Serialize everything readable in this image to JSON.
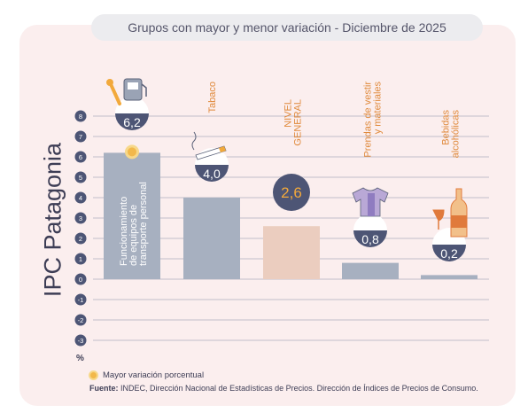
{
  "title": "Grupos con mayor y menor variación - Diciembre de 2025",
  "side_title": "IPC Patagonia",
  "legend": {
    "highlight_label": "Mayor variación porcentual"
  },
  "source": {
    "label": "Fuente:",
    "text": "INDEC, Dirección Nacional de Estadísticas de Precios. Dirección de Índices de Precios de Consumo."
  },
  "colors": {
    "card": "#fbeeee",
    "bar_groups": "#a7b0c0",
    "bar_general": "#ebcdbf",
    "badge": "#4d5575",
    "badge_general_text": "#f2a93b",
    "axis_dot": "#4d5575",
    "highlight": "#f2b84b"
  },
  "chart_data": {
    "type": "bar",
    "y_unit": "%",
    "ylim": [
      -3,
      8
    ],
    "yticks": [
      "8",
      "7",
      "6",
      "5",
      "4",
      "3",
      "2",
      "1",
      "0",
      "-1",
      "-2",
      "-3"
    ],
    "grid": true,
    "categories": [
      "Funcionamiento de equipos de transporte personal",
      "Tabaco",
      "NIVEL GENERAL",
      "Prendas de vestir y materiales",
      "Bebidas alcohólicas"
    ],
    "values": [
      6.2,
      4.0,
      2.6,
      0.8,
      0.2
    ],
    "value_labels": [
      "6,2",
      "4,0",
      "2,6",
      "0,8",
      "0,2"
    ],
    "category_lines": [
      [
        "Funcionamiento",
        "de equipos de",
        "transporte personal"
      ],
      [
        "Tabaco"
      ],
      [
        "NIVEL",
        "GENERAL"
      ],
      [
        "Prendas de vestir",
        "y materiales"
      ],
      [
        "Bebidas",
        "alcohólicas"
      ]
    ],
    "highlight_index": 0,
    "general_index": 2,
    "icons": [
      "fuel-pump-wrench-icon",
      "cigarette-icon",
      "",
      "shirt-icon",
      "wine-bottle-glass-icon"
    ]
  }
}
